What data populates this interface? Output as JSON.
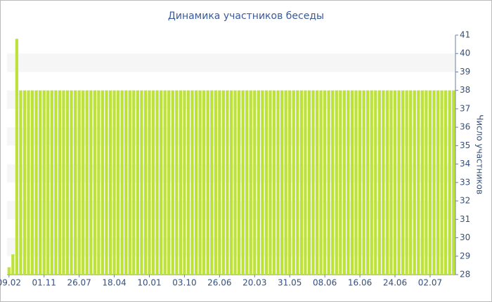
{
  "chart_data": {
    "type": "bar",
    "title": "Динамика участников беседы",
    "y_label": "Число участников",
    "categories": [
      "09.02",
      null,
      null,
      null,
      null,
      null,
      null,
      null,
      null,
      "01.11",
      null,
      null,
      null,
      null,
      null,
      null,
      null,
      null,
      "26.07",
      null,
      null,
      null,
      null,
      null,
      null,
      null,
      null,
      "18.04",
      null,
      null,
      null,
      null,
      null,
      null,
      null,
      null,
      "10.01",
      null,
      null,
      null,
      null,
      null,
      null,
      null,
      null,
      "03.10",
      null,
      null,
      null,
      null,
      null,
      null,
      null,
      null,
      "26.06",
      null,
      null,
      null,
      null,
      null,
      null,
      null,
      null,
      "20.03",
      null,
      null,
      null,
      null,
      null,
      null,
      null,
      null,
      "31.05",
      null,
      null,
      null,
      null,
      null,
      null,
      null,
      null,
      "08.06",
      null,
      null,
      null,
      null,
      null,
      null,
      null,
      null,
      "16.06",
      null,
      null,
      null,
      null,
      null,
      null,
      null,
      null,
      "24.06",
      null,
      null,
      null,
      null,
      null,
      null,
      null,
      null,
      "02.07",
      null,
      null,
      null,
      null,
      null,
      null
    ],
    "values": [
      28.4,
      29.1,
      40.8,
      38,
      38,
      38,
      38,
      38,
      38,
      38,
      38,
      38,
      38,
      38,
      38,
      38,
      38,
      38,
      38,
      38,
      38,
      38,
      38,
      38,
      38,
      38,
      38,
      38,
      38,
      38,
      38,
      38,
      38,
      38,
      38,
      38,
      38,
      38,
      38,
      38,
      38,
      38,
      38,
      38,
      38,
      38,
      38,
      38,
      38,
      38,
      38,
      38,
      38,
      38,
      38,
      38,
      38,
      38,
      38,
      38,
      38,
      38,
      38,
      38,
      38,
      38,
      38,
      38,
      38,
      38,
      38,
      38,
      38,
      38,
      38,
      38,
      38,
      38,
      38,
      38,
      38,
      38,
      38,
      38,
      38,
      38,
      38,
      38,
      38,
      38,
      38,
      38,
      38,
      38,
      38,
      38,
      38,
      38,
      38,
      38,
      38,
      38,
      38,
      38,
      38,
      38,
      38,
      38,
      38,
      38,
      38,
      38,
      38,
      38,
      38
    ],
    "color": "#bde23a",
    "ylim": [
      28,
      41
    ],
    "yticks": [
      28,
      29,
      30,
      31,
      32,
      33,
      34,
      35,
      36,
      37,
      38,
      39,
      40,
      41
    ],
    "y_axis_side": "right",
    "grid": true
  }
}
